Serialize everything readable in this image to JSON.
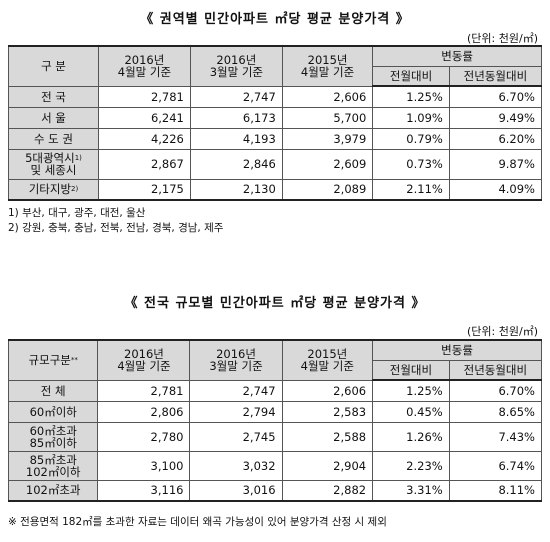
{
  "table1": {
    "title": "《 권역별 민간아파트 ㎡당 평균 분양가격 》",
    "unit": "(단위: 천원/㎡)",
    "header": {
      "category": "구    분",
      "col_2016_apr": [
        "2016년",
        "4월말 기준"
      ],
      "col_2016_mar": [
        "2016년",
        "3월말 기준"
      ],
      "col_2015_apr": [
        "2015년",
        "4월말 기준"
      ],
      "change": "변동률",
      "mom": "전월대비",
      "yoy": "전년동월대비"
    },
    "rows": [
      {
        "label": "전      국",
        "v1": "2,781",
        "v2": "2,747",
        "v3": "2,606",
        "mom": "1.25%",
        "yoy": "6.70%"
      },
      {
        "label": "서      울",
        "v1": "6,241",
        "v2": "6,173",
        "v3": "5,700",
        "mom": "1.09%",
        "yoy": "9.49%"
      },
      {
        "label": "수 도 권",
        "v1": "4,226",
        "v2": "4,193",
        "v3": "3,979",
        "mom": "0.79%",
        "yoy": "6.20%"
      },
      {
        "label": "5대광역시",
        "sup": "1)",
        "label2": "및 세종시",
        "v1": "2,867",
        "v2": "2,846",
        "v3": "2,609",
        "mom": "0.73%",
        "yoy": "9.87%"
      },
      {
        "label": "기타지방",
        "sup": "2)",
        "v1": "2,175",
        "v2": "2,130",
        "v3": "2,089",
        "mom": "2.11%",
        "yoy": "4.09%"
      }
    ],
    "notes": [
      "1) 부산, 대구, 광주, 대전, 울산",
      "2) 강원, 충북, 충남, 전북, 전남, 경북, 경남, 제주"
    ]
  },
  "table2": {
    "title": "《 전국 규모별 민간아파트 ㎡당 평균 분양가격 》",
    "unit": "(단위: 천원/㎡)",
    "header": {
      "category": "규모구분",
      "category_sup": "**",
      "col_2016_apr": [
        "2016년",
        "4월말 기준"
      ],
      "col_2016_mar": [
        "2016년",
        "3월말 기준"
      ],
      "col_2015_apr": [
        "2015년",
        "4월말 기준"
      ],
      "change": "변동률",
      "mom": "전월대비",
      "yoy": "전년동월대비"
    },
    "rows": [
      {
        "label": "전      체",
        "v1": "2,781",
        "v2": "2,747",
        "v3": "2,606",
        "mom": "1.25%",
        "yoy": "6.70%"
      },
      {
        "label": "60㎡이하",
        "v1": "2,806",
        "v2": "2,794",
        "v3": "2,583",
        "mom": "0.45%",
        "yoy": "8.65%"
      },
      {
        "label": "60㎡초과",
        "label2": "85㎡이하",
        "v1": "2,780",
        "v2": "2,745",
        "v3": "2,588",
        "mom": "1.26%",
        "yoy": "7.43%"
      },
      {
        "label": "85㎡초과",
        "label2": "102㎡이하",
        "v1": "3,100",
        "v2": "3,032",
        "v3": "2,904",
        "mom": "2.23%",
        "yoy": "6.74%"
      },
      {
        "label": "102㎡초과",
        "v1": "3,116",
        "v2": "3,016",
        "v3": "2,882",
        "mom": "3.31%",
        "yoy": "8.11%"
      }
    ],
    "footnote": "※ 전용면적 182㎡를 초과한 자료는 데이터 왜곡 가능성이 있어 분양가격 산정 시 제외"
  }
}
